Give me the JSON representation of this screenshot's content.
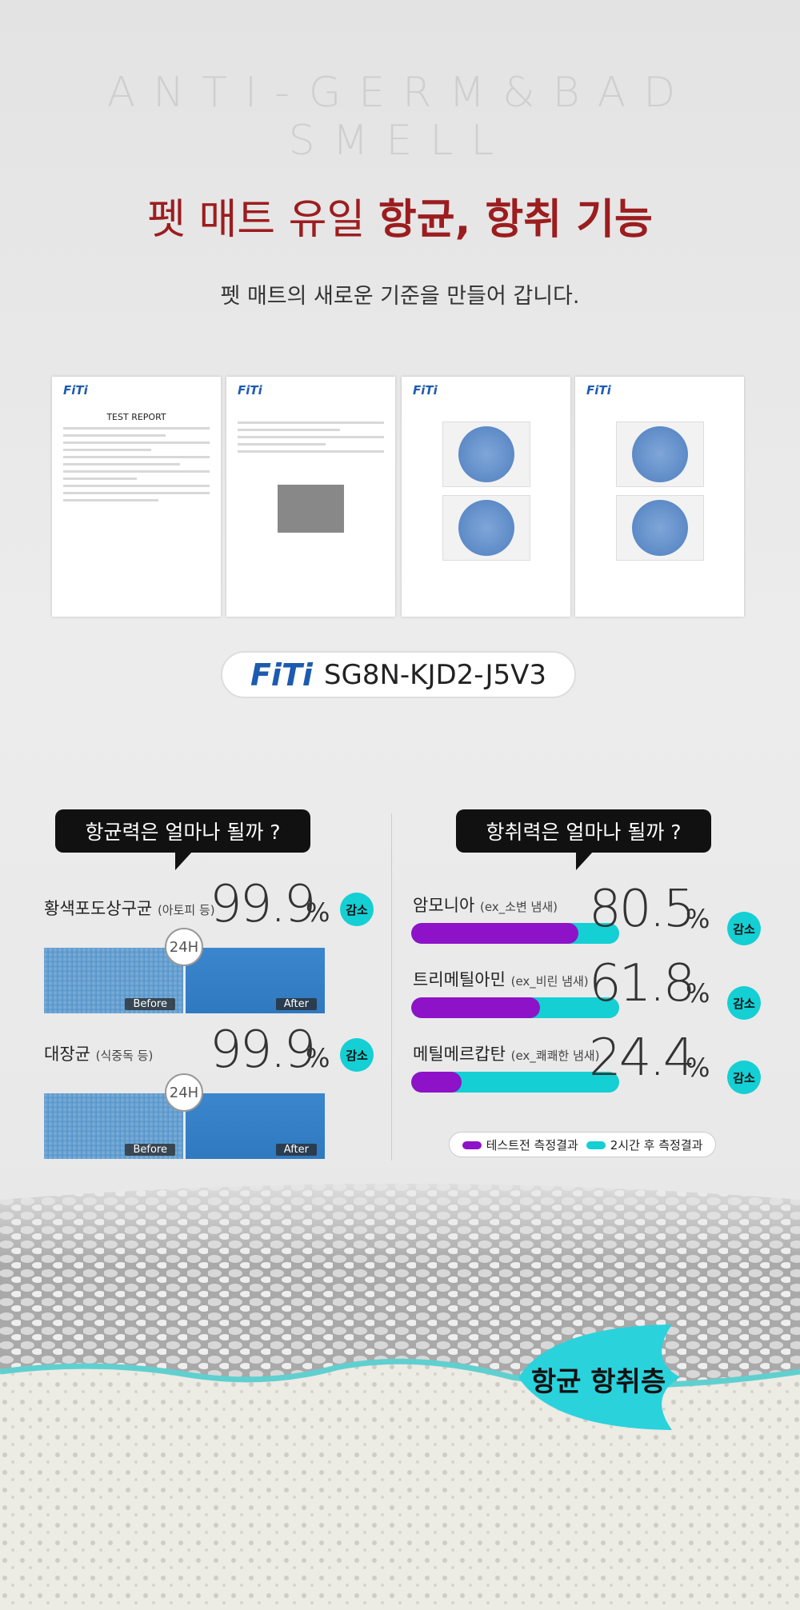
{
  "header": {
    "tagline": "ANTI-GERM&BAD SMELL",
    "title_plain": "펫 매트 유일",
    "title_strong": "항균, 항취 기능",
    "subtitle": "펫 매트의 새로운 기준을 만들어 갑니다."
  },
  "reports": [
    {
      "logo": "FiTi",
      "heading": "TEST REPORT"
    },
    {
      "logo": "FiTi"
    },
    {
      "logo": "FiTi"
    },
    {
      "logo": "FiTi"
    }
  ],
  "certificate": {
    "logo": "FiTi",
    "code": "SG8N-KJD2-J5V3"
  },
  "antibacterial": {
    "question": "항균력은 얼마나 될까 ?",
    "items": [
      {
        "name": "황색포도상구균",
        "note": "(아토피 등)",
        "value": 99.9,
        "unit": "%",
        "badge": "감소",
        "time": "24H",
        "before": "Before",
        "after": "After"
      },
      {
        "name": "대장균",
        "note": "(식중독 등)",
        "value": 99.9,
        "unit": "%",
        "badge": "감소",
        "time": "24H",
        "before": "Before",
        "after": "After"
      }
    ]
  },
  "deodorization": {
    "question": "항취력은 얼마나 될까 ?",
    "items": [
      {
        "name": "암모니아",
        "note": "(ex_소변 냄새)",
        "value": 80.5,
        "unit": "%",
        "badge": "감소"
      },
      {
        "name": "트리메틸아민",
        "note": "(ex_비린 냄새)",
        "value": 61.8,
        "unit": "%",
        "badge": "감소"
      },
      {
        "name": "메틸메르캅탄",
        "note": "(ex_쾌쾌한 냄새)",
        "value": 24.4,
        "unit": "%",
        "badge": "감소"
      }
    ],
    "legend": {
      "before": "테스트전 측정결과",
      "after": "2시간 후 측정결과"
    }
  },
  "layer": {
    "label": "항균 항취층"
  }
}
